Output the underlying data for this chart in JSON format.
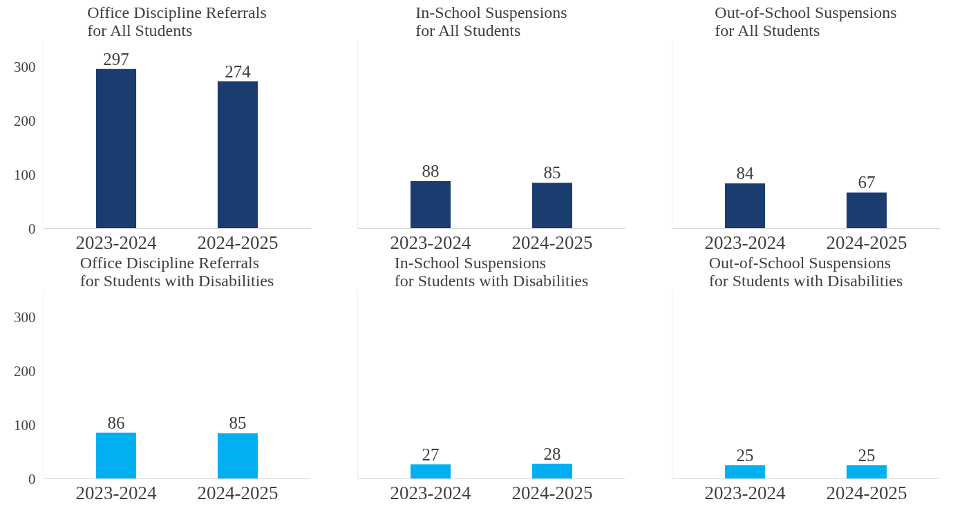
{
  "chart_data": [
    {
      "type": "bar",
      "title": "Office Discipline Referrals\nfor All Students",
      "categories": [
        "2023-2024",
        "2024-2025"
      ],
      "values": [
        297,
        274
      ],
      "color": "#1a3c6e",
      "ylim": [
        0,
        350
      ],
      "yticks": [
        0,
        100,
        200,
        300
      ],
      "data_labels": true
    },
    {
      "type": "bar",
      "title": "In-School Suspensions\nfor All Students",
      "categories": [
        "2023-2024",
        "2024-2025"
      ],
      "values": [
        88,
        85
      ],
      "color": "#1a3c6e",
      "ylim": [
        0,
        350
      ],
      "tick_labels": "x",
      "data_labels": true
    },
    {
      "type": "bar",
      "title": "Out-of-School Suspensions\nfor All Students",
      "categories": [
        "2023-2024",
        "2024-2025"
      ],
      "values": [
        84,
        67
      ],
      "color": "#1a3c6e",
      "ylim": [
        0,
        350
      ],
      "tick_labels": "x",
      "data_labels": true
    },
    {
      "type": "bar",
      "title": "Office Discipline Referrals\nfor Students with Disabilities",
      "categories": [
        "2023-2024",
        "2024-2025"
      ],
      "values": [
        86,
        85
      ],
      "color": "#00b0f0",
      "ylim": [
        0,
        350
      ],
      "yticks": [
        0,
        100,
        200,
        300
      ],
      "data_labels": true
    },
    {
      "type": "bar",
      "title": "In-School Suspensions\nfor Students with Disabilities",
      "categories": [
        "2023-2024",
        "2024-2025"
      ],
      "values": [
        27,
        28
      ],
      "color": "#00b0f0",
      "ylim": [
        0,
        350
      ],
      "tick_labels": "x",
      "data_labels": true
    },
    {
      "type": "bar",
      "title": "Out-of-School Suspensions\nfor Students with Disabilities",
      "categories": [
        "2023-2024",
        "2024-2025"
      ],
      "values": [
        25,
        25
      ],
      "color": "#00b0f0",
      "ylim": [
        0,
        350
      ],
      "tick_labels": "x",
      "data_labels": true
    }
  ]
}
